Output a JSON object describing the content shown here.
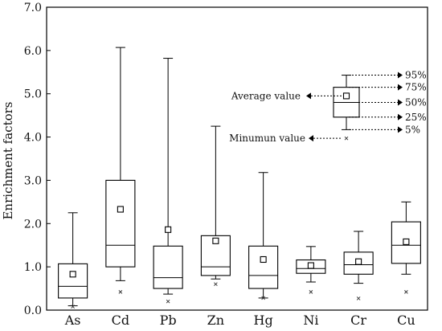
{
  "chart_data": {
    "type": "box",
    "ylabel": "Enrichment factors",
    "ylim": [
      0,
      7
    ],
    "yticks": [
      "0.0",
      "1.0",
      "2.0",
      "3.0",
      "4.0",
      "5.0",
      "6.0",
      "7.0"
    ],
    "categories": [
      "As",
      "Cd",
      "Pb",
      "Zn",
      "Hg",
      "Ni",
      "Cr",
      "Cu"
    ],
    "boxes": [
      {
        "whisker_low": 0.1,
        "q1": 0.28,
        "median": 0.55,
        "q3": 1.07,
        "whisker_high": 2.25,
        "mean": 0.83,
        "min": 0.08
      },
      {
        "whisker_low": 0.68,
        "q1": 1.0,
        "median": 1.5,
        "q3": 3.0,
        "whisker_high": 6.07,
        "mean": 2.33,
        "min": 0.42
      },
      {
        "whisker_low": 0.37,
        "q1": 0.5,
        "median": 0.75,
        "q3": 1.48,
        "whisker_high": 5.82,
        "mean": 1.86,
        "min": 0.2
      },
      {
        "whisker_low": 0.72,
        "q1": 0.8,
        "median": 1.0,
        "q3": 1.72,
        "whisker_high": 4.25,
        "mean": 1.6,
        "min": 0.6
      },
      {
        "whisker_low": 0.28,
        "q1": 0.5,
        "median": 0.8,
        "q3": 1.48,
        "whisker_high": 3.18,
        "mean": 1.17,
        "min": 0.28
      },
      {
        "whisker_low": 0.65,
        "q1": 0.85,
        "median": 0.96,
        "q3": 1.16,
        "whisker_high": 1.47,
        "mean": 1.03,
        "min": 0.42
      },
      {
        "whisker_low": 0.62,
        "q1": 0.83,
        "median": 1.05,
        "q3": 1.34,
        "whisker_high": 1.82,
        "mean": 1.12,
        "min": 0.27
      },
      {
        "whisker_low": 0.83,
        "q1": 1.08,
        "median": 1.5,
        "q3": 2.04,
        "whisker_high": 2.5,
        "mean": 1.58,
        "min": 0.42
      }
    ],
    "legend": {
      "box": {
        "whisker_low": 4.17,
        "q1": 4.46,
        "median": 4.8,
        "q3": 5.15,
        "whisker_high": 5.43,
        "mean": 4.95,
        "min": 3.97
      },
      "labels": {
        "p95": "95%",
        "p75": "75%",
        "p50": "50%",
        "p25": "25%",
        "p5": "5%",
        "average": "Average value",
        "minimum": "Minumun value"
      }
    }
  }
}
